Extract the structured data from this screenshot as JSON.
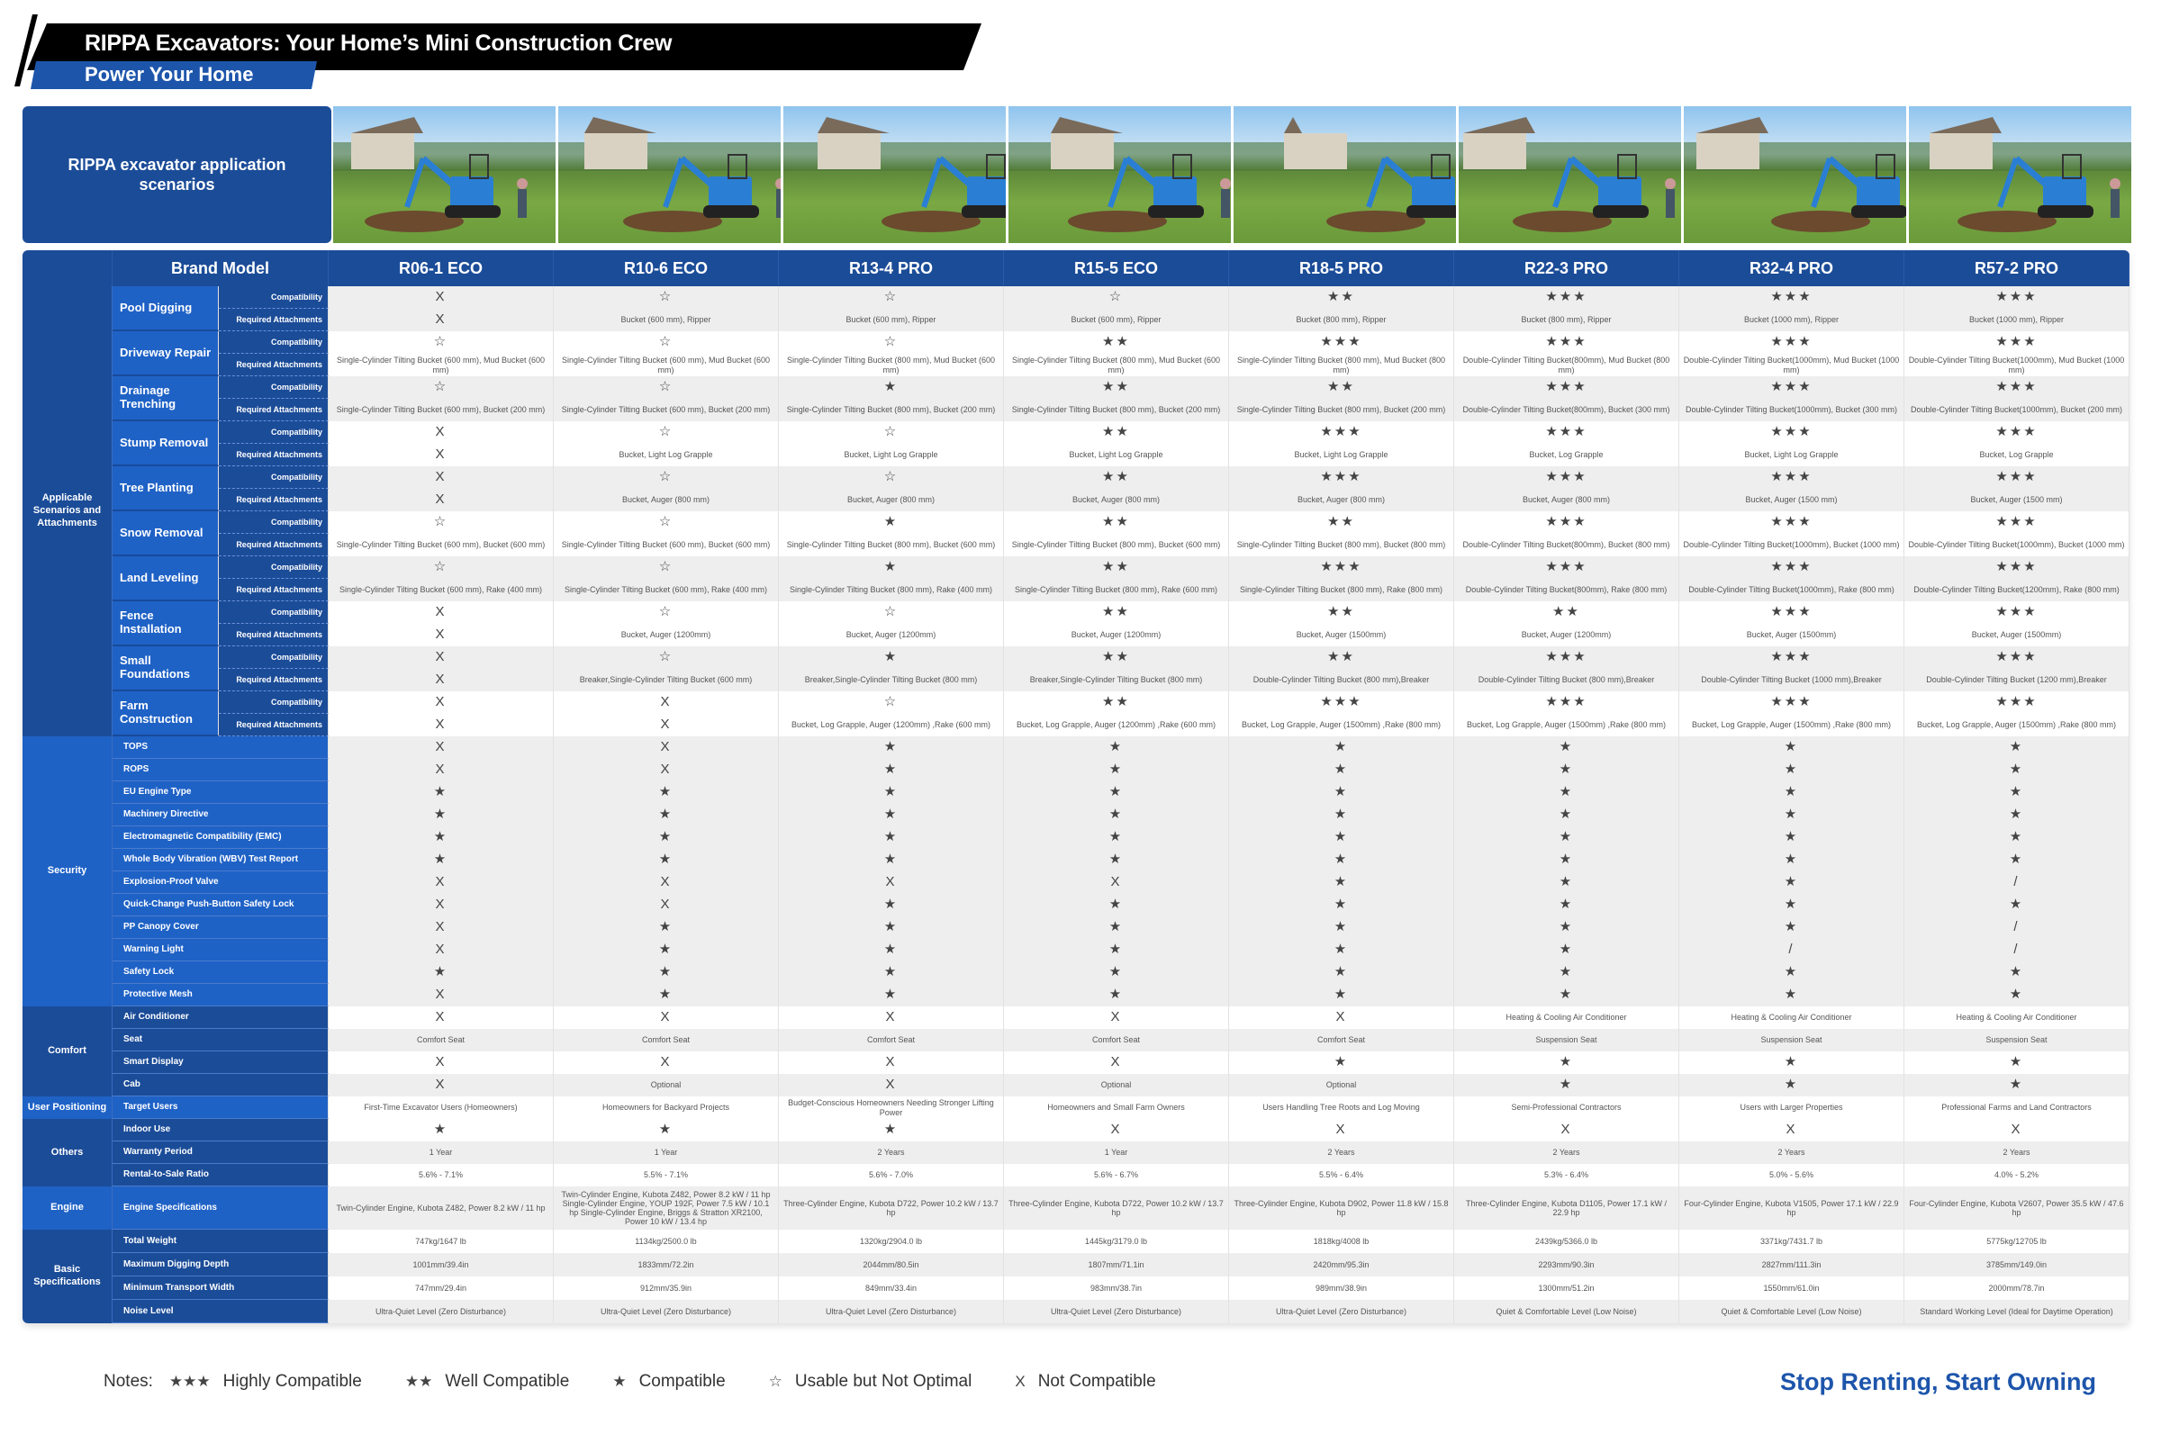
{
  "header": {
    "title": "RIPPA Excavators: Your Home’s Mini Construction Crew",
    "subtitle": "Power Your Home"
  },
  "applications": {
    "label": "RIPPA excavator application scenarios",
    "photo_count": 8
  },
  "table": {
    "brand_model_label": "Brand Model",
    "models": [
      "R06-1 ECO",
      "R10-6 ECO",
      "R13-4 PRO",
      "R15-5 ECO",
      "R18-5 PRO",
      "R22-3 PRO",
      "R32-4 PRO",
      "R57-2 PRO"
    ],
    "scenario_group": "Applicable Scenarios and Attachments",
    "compat_label": "Compatibility",
    "attach_label": "Required Attachments",
    "scenarios": [
      {
        "name": "Pool Digging",
        "compat": [
          "X",
          "☆",
          "☆",
          "☆",
          "★★",
          "★★★",
          "★★★",
          "★★★"
        ],
        "attach": [
          "X",
          "Bucket (600 mm), Ripper",
          "Bucket (600 mm), Ripper",
          "Bucket (600 mm), Ripper",
          "Bucket (800 mm), Ripper",
          "Bucket (800 mm), Ripper",
          "Bucket (1000 mm), Ripper",
          "Bucket (1000 mm), Ripper"
        ]
      },
      {
        "name": "Driveway Repair",
        "compat": [
          "☆",
          "☆",
          "☆",
          "★★",
          "★★★",
          "★★★",
          "★★★",
          "★★★"
        ],
        "attach": [
          "Single-Cylinder Tilting Bucket (600 mm), Mud Bucket (600 mm)",
          "Single-Cylinder Tilting Bucket (600 mm), Mud Bucket (600 mm)",
          "Single-Cylinder Tilting Bucket (800 mm), Mud Bucket (600 mm)",
          "Single-Cylinder Tilting Bucket (800 mm), Mud Bucket (600 mm)",
          "Single-Cylinder Tilting Bucket (800 mm), Mud Bucket (800 mm)",
          "Double-Cylinder Tilting Bucket(800mm), Mud Bucket (800 mm)",
          "Double-Cylinder Tilting Bucket(1000mm), Mud Bucket (1000 mm)",
          "Double-Cylinder Tilting Bucket(1000mm), Mud Bucket (1000 mm)"
        ]
      },
      {
        "name": "Drainage Trenching",
        "compat": [
          "☆",
          "☆",
          "★",
          "★★",
          "★★",
          "★★★",
          "★★★",
          "★★★"
        ],
        "attach": [
          "Single-Cylinder Tilting Bucket (600 mm), Bucket (200 mm)",
          "Single-Cylinder Tilting Bucket (600 mm), Bucket (200 mm)",
          "Single-Cylinder Tilting Bucket (800 mm), Bucket (200 mm)",
          "Single-Cylinder Tilting Bucket (800 mm), Bucket (200 mm)",
          "Single-Cylinder Tilting Bucket (800 mm), Bucket (200 mm)",
          "Double-Cylinder Tilting Bucket(800mm), Bucket (300 mm)",
          "Double-Cylinder Tilting Bucket(1000mm), Bucket (300 mm)",
          "Double-Cylinder Tilting Bucket(1000mm), Bucket (200 mm)"
        ]
      },
      {
        "name": "Stump Removal",
        "compat": [
          "X",
          "☆",
          "☆",
          "★★",
          "★★★",
          "★★★",
          "★★★",
          "★★★"
        ],
        "attach": [
          "X",
          "Bucket, Light Log Grapple",
          "Bucket, Light Log Grapple",
          "Bucket, Light Log Grapple",
          "Bucket, Light Log Grapple",
          "Bucket, Log Grapple",
          "Bucket, Light Log Grapple",
          "Bucket, Log Grapple"
        ]
      },
      {
        "name": "Tree Planting",
        "compat": [
          "X",
          "☆",
          "☆",
          "★★",
          "★★★",
          "★★★",
          "★★★",
          "★★★"
        ],
        "attach": [
          "X",
          "Bucket, Auger (800 mm)",
          "Bucket, Auger (800 mm)",
          "Bucket, Auger (800 mm)",
          "Bucket, Auger (800 mm)",
          "Bucket, Auger (800 mm)",
          "Bucket, Auger (1500 mm)",
          "Bucket, Auger (1500 mm)"
        ]
      },
      {
        "name": "Snow Removal",
        "compat": [
          "☆",
          "☆",
          "★",
          "★★",
          "★★",
          "★★★",
          "★★★",
          "★★★"
        ],
        "attach": [
          "Single-Cylinder Tilting Bucket (600 mm), Bucket (600 mm)",
          "Single-Cylinder Tilting Bucket (600 mm), Bucket (600 mm)",
          "Single-Cylinder Tilting Bucket (800 mm), Bucket (600 mm)",
          "Single-Cylinder Tilting Bucket (800 mm), Bucket (600 mm)",
          "Single-Cylinder Tilting Bucket (800 mm), Bucket (800 mm)",
          "Double-Cylinder Tilting Bucket(800mm), Bucket (800 mm)",
          "Double-Cylinder Tilting Bucket(1000mm), Bucket (1000 mm)",
          "Double-Cylinder Tilting Bucket(1000mm), Bucket (1000 mm)"
        ]
      },
      {
        "name": "Land Leveling",
        "compat": [
          "☆",
          "☆",
          "★",
          "★★",
          "★★★",
          "★★★",
          "★★★",
          "★★★"
        ],
        "attach": [
          "Single-Cylinder Tilting Bucket (600 mm), Rake (400 mm)",
          "Single-Cylinder Tilting Bucket (600 mm), Rake (400 mm)",
          "Single-Cylinder Tilting Bucket (800 mm), Rake (400 mm)",
          "Single-Cylinder Tilting Bucket (800 mm), Rake (600 mm)",
          "Single-Cylinder Tilting Bucket (800 mm), Rake (800 mm)",
          "Double-Cylinder Tilting Bucket(800mm), Rake (800 mm)",
          "Double-Cylinder Tilting Bucket(1000mm), Rake (800 mm)",
          "Double-Cylinder Tilting Bucket(1200mm), Rake (800 mm)"
        ]
      },
      {
        "name": "Fence Installation",
        "compat": [
          "X",
          "☆",
          "☆",
          "★★",
          "★★",
          "★★",
          "★★★",
          "★★★"
        ],
        "attach": [
          "X",
          "Bucket, Auger (1200mm)",
          "Bucket, Auger (1200mm)",
          "Bucket, Auger (1200mm)",
          "Bucket, Auger (1500mm)",
          "Bucket, Auger (1200mm)",
          "Bucket, Auger (1500mm)",
          "Bucket, Auger (1500mm)"
        ]
      },
      {
        "name": "Small Foundations",
        "compat": [
          "X",
          "☆",
          "★",
          "★★",
          "★★",
          "★★★",
          "★★★",
          "★★★"
        ],
        "attach": [
          "X",
          "Breaker,Single-Cylinder Tilting Bucket (600 mm)",
          "Breaker,Single-Cylinder Tilting Bucket (800 mm)",
          "Breaker,Single-Cylinder Tilting Bucket (800 mm)",
          "Double-Cylinder Tilting Bucket (800 mm),Breaker",
          "Double-Cylinder Tilting Bucket (800 mm),Breaker",
          "Double-Cylinder Tilting Bucket (1000 mm),Breaker",
          "Double-Cylinder Tilting Bucket (1200 mm),Breaker"
        ]
      },
      {
        "name": "Farm Construction",
        "compat": [
          "X",
          "X",
          "☆",
          "★★",
          "★★★",
          "★★★",
          "★★★",
          "★★★"
        ],
        "attach": [
          "X",
          "X",
          "Bucket, Log Grapple, Auger (1200mm) ,Rake (600 mm)",
          "Bucket, Log Grapple, Auger (1200mm) ,Rake (600 mm)",
          "Bucket, Log Grapple, Auger (1500mm) ,Rake (800 mm)",
          "Bucket, Log Grapple, Auger (1500mm) ,Rake (800 mm)",
          "Bucket, Log Grapple, Auger (1500mm) ,Rake (800 mm)",
          "Bucket, Log Grapple, Auger (1500mm) ,Rake (800 mm)"
        ]
      }
    ],
    "sections": [
      {
        "group": "Security",
        "bright": true,
        "rows": [
          {
            "label": "TOPS",
            "values": [
              "X",
              "X",
              "★",
              "★",
              "★",
              "★",
              "★",
              "★"
            ]
          },
          {
            "label": "ROPS",
            "values": [
              "X",
              "X",
              "★",
              "★",
              "★",
              "★",
              "★",
              "★"
            ]
          },
          {
            "label": "EU Engine Type",
            "values": [
              "★",
              "★",
              "★",
              "★",
              "★",
              "★",
              "★",
              "★"
            ]
          },
          {
            "label": "Machinery Directive",
            "values": [
              "★",
              "★",
              "★",
              "★",
              "★",
              "★",
              "★",
              "★"
            ]
          },
          {
            "label": "Electromagnetic Compatibility (EMC)",
            "values": [
              "★",
              "★",
              "★",
              "★",
              "★",
              "★",
              "★",
              "★"
            ]
          },
          {
            "label": "Whole Body Vibration (WBV) Test Report",
            "values": [
              "★",
              "★",
              "★",
              "★",
              "★",
              "★",
              "★",
              "★"
            ]
          },
          {
            "label": "Explosion-Proof Valve",
            "values": [
              "X",
              "X",
              "X",
              "X",
              "★",
              "★",
              "★",
              "/"
            ]
          },
          {
            "label": "Quick-Change Push-Button Safety Lock",
            "values": [
              "X",
              "X",
              "★",
              "★",
              "★",
              "★",
              "★",
              "★"
            ]
          },
          {
            "label": "PP Canopy Cover",
            "values": [
              "X",
              "★",
              "★",
              "★",
              "★",
              "★",
              "★",
              "/"
            ]
          },
          {
            "label": "Warning Light",
            "values": [
              "X",
              "★",
              "★",
              "★",
              "★",
              "★",
              "/",
              "/"
            ]
          },
          {
            "label": "Safety Lock",
            "values": [
              "★",
              "★",
              "★",
              "★",
              "★",
              "★",
              "★",
              "★"
            ]
          },
          {
            "label": "Protective Mesh",
            "values": [
              "X",
              "★",
              "★",
              "★",
              "★",
              "★",
              "★",
              "★"
            ]
          }
        ]
      },
      {
        "group": "Comfort",
        "bright": false,
        "rows": [
          {
            "label": "Air Conditioner",
            "values": [
              "X",
              "X",
              "X",
              "X",
              "X",
              "Heating & Cooling Air Conditioner",
              "Heating & Cooling Air Conditioner",
              "Heating & Cooling Air Conditioner"
            ]
          },
          {
            "label": "Seat",
            "values": [
              "Comfort Seat",
              "Comfort Seat",
              "Comfort Seat",
              "Comfort Seat",
              "Comfort Seat",
              "Suspension Seat",
              "Suspension Seat",
              "Suspension Seat"
            ]
          },
          {
            "label": "Smart Display",
            "values": [
              "X",
              "X",
              "X",
              "X",
              "★",
              "★",
              "★",
              "★"
            ]
          },
          {
            "label": "Cab",
            "values": [
              "X",
              "Optional",
              "X",
              "Optional",
              "Optional",
              "★",
              "★",
              "★"
            ]
          }
        ]
      },
      {
        "group": "User Positioning",
        "bright": true,
        "rows": [
          {
            "label": "Target Users",
            "values": [
              "First-Time Excavator Users (Homeowners)",
              "Homeowners for Backyard Projects",
              "Budget-Conscious Homeowners Needing Stronger Lifting Power",
              "Homeowners and Small Farm Owners",
              "Users Handling Tree Roots and Log Moving",
              "Semi-Professional Contractors",
              "Users with Larger Properties",
              "Professional Farms and Land Contractors"
            ]
          }
        ]
      },
      {
        "group": "Others",
        "bright": false,
        "rows": [
          {
            "label": "Indoor Use",
            "values": [
              "★",
              "★",
              "★",
              "X",
              "X",
              "X",
              "X",
              "X"
            ]
          },
          {
            "label": "Warranty Period",
            "values": [
              "1 Year",
              "1 Year",
              "2 Years",
              "1 Year",
              "2 Years",
              "2 Years",
              "2 Years",
              "2 Years"
            ]
          },
          {
            "label": "Rental-to-Sale Ratio",
            "values": [
              "5.6% - 7.1%",
              "5.5% - 7.1%",
              "5.6% - 7.0%",
              "5.6% - 6.7%",
              "5.5% - 6.4%",
              "5.3% - 6.4%",
              "5.0% - 5.6%",
              "4.0% - 5.2%"
            ]
          }
        ]
      },
      {
        "group": "Engine",
        "bright": true,
        "tall": true,
        "rows": [
          {
            "label": "Engine Specifications",
            "values": [
              "Twin-Cylinder Engine, Kubota Z482, Power 8.2 kW / 11 hp",
              "Twin-Cylinder Engine, Kubota Z482, Power 8.2 kW / 11 hp Single-Cylinder Engine, YOUP 192F, Power 7.5 kW / 10.1 hp Single-Cylinder Engine, Briggs & Stratton XR2100, Power 10 kW / 13.4 hp",
              "Three-Cylinder Engine, Kubota D722, Power 10.2 kW / 13.7 hp",
              "Three-Cylinder Engine, Kubota D722, Power 10.2 kW / 13.7 hp",
              "Three-Cylinder Engine, Kubota D902, Power 11.8 kW / 15.8 hp",
              "Three-Cylinder Engine, Kubota D1105, Power 17.1 kW / 22.9 hp",
              "Four-Cylinder Engine, Kubota V1505, Power 17.1 kW / 22.9 hp",
              "Four-Cylinder Engine, Kubota V2607, Power 35.5 kW / 47.6 hp"
            ]
          }
        ]
      },
      {
        "group": "Basic Specifications",
        "bright": false,
        "rows": [
          {
            "label": "Total Weight",
            "values": [
              "747kg/1647 lb",
              "1134kg/2500.0 lb",
              "1320kg/2904.0 lb",
              "1445kg/3179.0 lb",
              "1818kg/4008 lb",
              "2439kg/5366.0 lb",
              "3371kg/7431.7 lb",
              "5775kg/12705 lb"
            ]
          },
          {
            "label": "Maximum Digging Depth",
            "values": [
              "1001mm/39.4in",
              "1833mm/72.2in",
              "2044mm/80.5in",
              "1807mm/71.1in",
              "2420mm/95.3in",
              "2293mm/90.3in",
              "2827mm/111.3in",
              "3785mm/149.0in"
            ]
          },
          {
            "label": "Minimum Transport Width",
            "values": [
              "747mm/29.4in",
              "912mm/35.9in",
              "849mm/33.4in",
              "983mm/38.7in",
              "989mm/38.9in",
              "1300mm/51.2in",
              "1550mm/61.0in",
              "2000mm/78.7in"
            ]
          },
          {
            "label": "Noise Level",
            "values": [
              "Ultra-Quiet Level (Zero Disturbance)",
              "Ultra-Quiet Level (Zero Disturbance)",
              "Ultra-Quiet Level (Zero Disturbance)",
              "Ultra-Quiet Level (Zero Disturbance)",
              "Ultra-Quiet Level (Zero Disturbance)",
              "Quiet & Comfortable Level (Low Noise)",
              "Quiet & Comfortable Level (Low Noise)",
              "Standard Working Level (Ideal for Daytime Operation)"
            ]
          }
        ]
      }
    ]
  },
  "legend": {
    "notes_label": "Notes:",
    "items": [
      {
        "symbol": "★★★",
        "label": "Highly Compatible"
      },
      {
        "symbol": "★★",
        "label": "Well Compatible"
      },
      {
        "symbol": "★",
        "label": "Compatible"
      },
      {
        "symbol": "☆",
        "label": "Usable but Not Optimal"
      },
      {
        "symbol": "X",
        "label": "Not Compatible"
      }
    ]
  },
  "slogan": "Stop Renting, Start Owning",
  "colors": {
    "brand_dark_blue": "#1b4c98",
    "brand_blue": "#1f62c6",
    "banner_black": "#000000"
  }
}
